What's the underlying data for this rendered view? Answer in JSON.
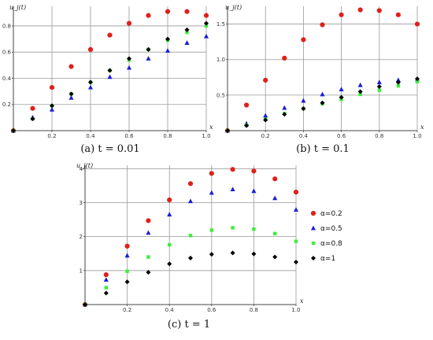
{
  "colors": {
    "alpha_0_2": "#e0201b",
    "alpha_0_5": "#1b1fd6",
    "alpha_0_8": "#3cee3c",
    "alpha_1": "#000000",
    "grid": "#9a9a9a",
    "axis": "#444444"
  },
  "legend": {
    "entries": [
      {
        "label": "α=0.2",
        "marker": "circle",
        "color": "#e0201b"
      },
      {
        "label": "α=0.5",
        "marker": "triangle",
        "color": "#1b1fd6"
      },
      {
        "label": "α=0.8",
        "marker": "square",
        "color": "#3cee3c"
      },
      {
        "label": "α=1",
        "marker": "diamond",
        "color": "#000000"
      }
    ]
  },
  "chart_data": [
    {
      "type": "scatter",
      "caption": "(a) t = 0.01",
      "xlabel": "x",
      "ylabel": "u_j(t)",
      "xlim": [
        0,
        1.0
      ],
      "ylim": [
        0,
        0.95
      ],
      "xticks": [
        "0.2",
        "0.4",
        "0.6",
        "0.8",
        "1.0"
      ],
      "yticks": [
        "0.2",
        "0.4",
        "0.6",
        "0.8"
      ],
      "grid": true,
      "x": [
        0,
        0.1,
        0.2,
        0.3,
        0.4,
        0.5,
        0.6,
        0.7,
        0.8,
        0.9,
        1.0
      ],
      "series": [
        {
          "name": "α=0.2",
          "values": [
            0,
            0.17,
            0.33,
            0.49,
            0.62,
            0.73,
            0.82,
            0.88,
            0.91,
            0.91,
            0.88
          ]
        },
        {
          "name": "α=0.5",
          "values": [
            0,
            0.1,
            0.16,
            0.25,
            0.33,
            0.41,
            0.48,
            0.55,
            0.61,
            0.67,
            0.72
          ]
        },
        {
          "name": "α=0.8",
          "values": [
            0,
            0.09,
            0.19,
            0.28,
            0.37,
            0.46,
            0.54,
            0.62,
            0.69,
            0.75,
            0.8
          ]
        },
        {
          "name": "α=1",
          "values": [
            0,
            0.09,
            0.19,
            0.28,
            0.37,
            0.46,
            0.55,
            0.62,
            0.7,
            0.77,
            0.82
          ]
        }
      ]
    },
    {
      "type": "scatter",
      "caption": "(b) t = 0.1",
      "xlabel": "x",
      "ylabel": "u_j(t)",
      "xlim": [
        0,
        1.0
      ],
      "ylim": [
        0,
        1.75
      ],
      "xticks": [
        "0.2",
        "0.4",
        "0.6",
        "0.8",
        "1.0"
      ],
      "yticks": [
        "0.5",
        "1.0",
        "1.5"
      ],
      "grid": true,
      "x": [
        0,
        0.1,
        0.2,
        0.3,
        0.4,
        0.5,
        0.6,
        0.7,
        0.8,
        0.9,
        1.0
      ],
      "series": [
        {
          "name": "α=0.2",
          "values": [
            0,
            0.36,
            0.71,
            1.02,
            1.28,
            1.49,
            1.63,
            1.7,
            1.69,
            1.63,
            1.5
          ]
        },
        {
          "name": "α=0.5",
          "values": [
            0,
            0.1,
            0.21,
            0.32,
            0.42,
            0.51,
            0.58,
            0.64,
            0.68,
            0.71,
            0.72
          ]
        },
        {
          "name": "α=0.8",
          "values": [
            0,
            0.08,
            0.16,
            0.24,
            0.31,
            0.38,
            0.44,
            0.51,
            0.57,
            0.63,
            0.69
          ]
        },
        {
          "name": "α=1",
          "values": [
            0,
            0.07,
            0.15,
            0.23,
            0.31,
            0.39,
            0.47,
            0.55,
            0.62,
            0.68,
            0.73
          ]
        }
      ]
    },
    {
      "type": "scatter",
      "caption": "(c) t = 1",
      "xlabel": "x",
      "ylabel": "u_j(t)",
      "xlim": [
        0,
        1.0
      ],
      "ylim": [
        0,
        4.1
      ],
      "xticks": [
        "0.2",
        "0.4",
        "0.6",
        "0.8",
        "1.0"
      ],
      "yticks": [
        "1",
        "2",
        "3",
        "4"
      ],
      "grid": true,
      "x": [
        0,
        0.1,
        0.2,
        0.3,
        0.4,
        0.5,
        0.6,
        0.7,
        0.8,
        0.9,
        1.0
      ],
      "series": [
        {
          "name": "α=0.2",
          "values": [
            0,
            0.88,
            1.72,
            2.47,
            3.08,
            3.56,
            3.86,
            3.98,
            3.93,
            3.7,
            3.31
          ]
        },
        {
          "name": "α=0.5",
          "values": [
            0,
            0.73,
            1.44,
            2.11,
            2.65,
            3.04,
            3.29,
            3.39,
            3.34,
            3.13,
            2.79
          ]
        },
        {
          "name": "α=0.8",
          "values": [
            0,
            0.5,
            0.98,
            1.4,
            1.76,
            2.03,
            2.19,
            2.26,
            2.22,
            2.09,
            1.86
          ]
        },
        {
          "name": "α=1",
          "values": [
            0,
            0.34,
            0.67,
            0.95,
            1.2,
            1.37,
            1.48,
            1.52,
            1.49,
            1.4,
            1.25
          ]
        }
      ]
    }
  ]
}
